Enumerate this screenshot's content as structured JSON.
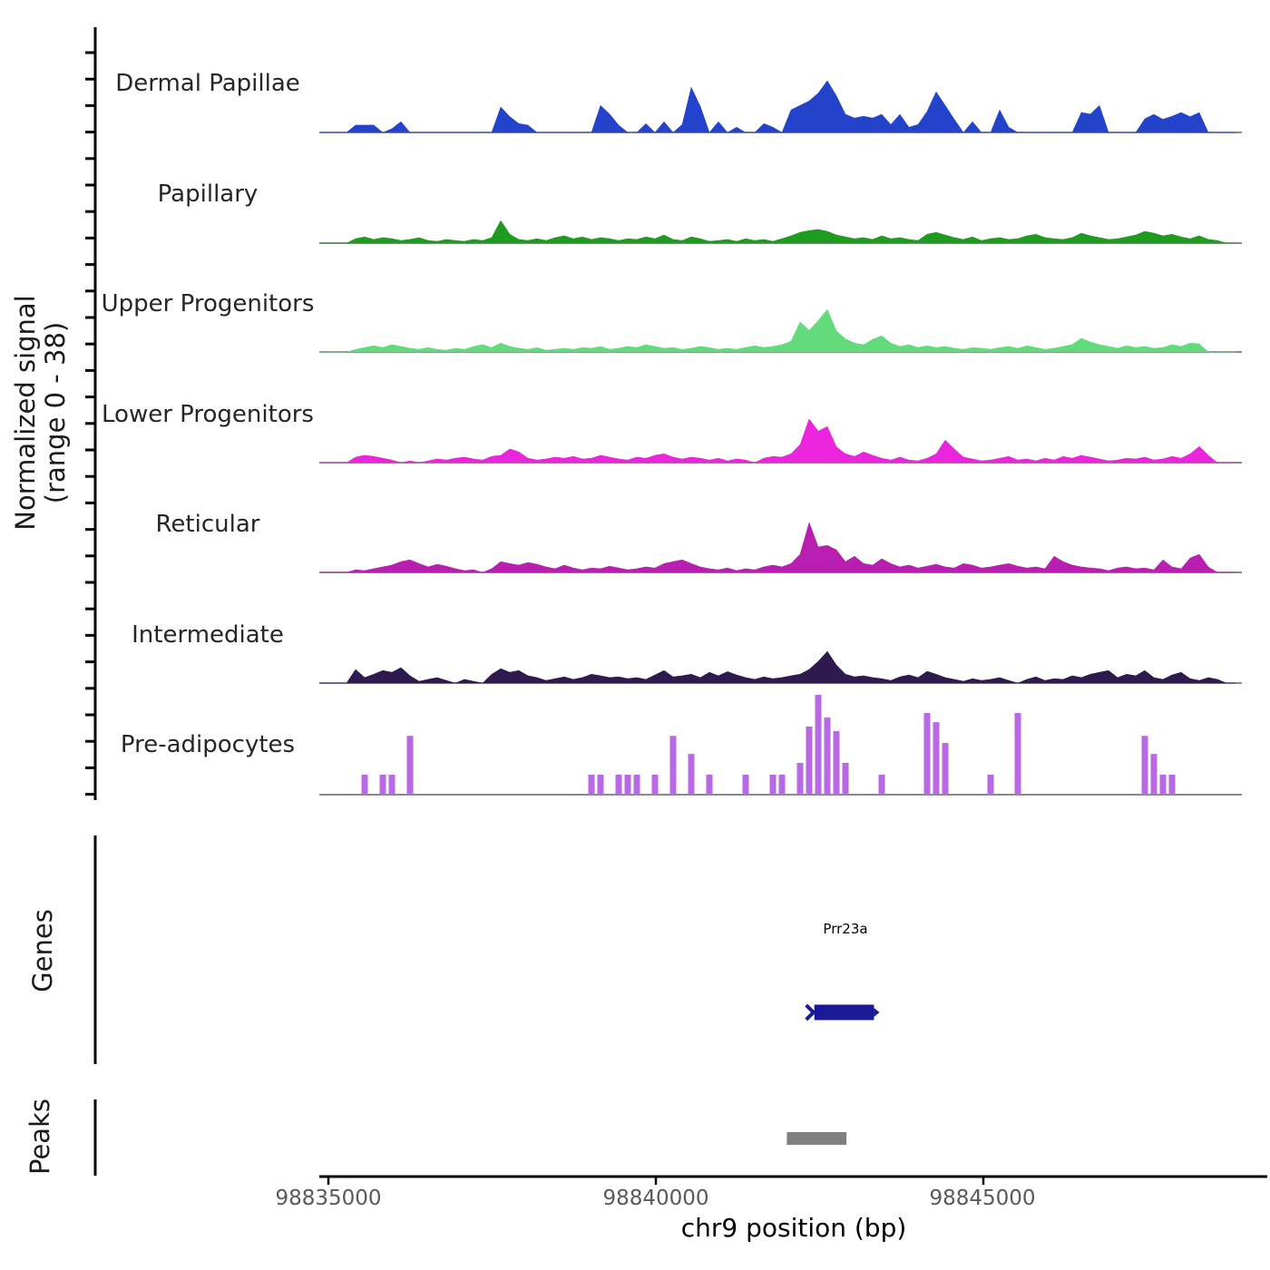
{
  "figure": {
    "y_axis_label_line1": "Normalized signal",
    "y_axis_label_line2": "(range 0 - 38)",
    "x_axis_title": "chr9 position (bp)",
    "genes_label": "Genes",
    "peaks_label": "Peaks"
  },
  "colors": {
    "dermal_papillae": "#2443cb",
    "papillary": "#1f9c1f",
    "upper_progenitors": "#63da7c",
    "lower_progenitors": "#ea25dc",
    "reticular": "#b81fb0",
    "intermediate": "#2e1a4f",
    "pre_adipocytes": "#b969e6",
    "gene_body": "#1a1a99",
    "peak_box": "#808080",
    "baseline": "#7a7a7a",
    "tick_label": "#595959"
  },
  "chart_data": {
    "type": "area",
    "title": "",
    "xlabel": "chr9 position (bp)",
    "ylabel": "Normalized signal (range 0 - 38)",
    "ylim": [
      0,
      38
    ],
    "grid": false,
    "x_start_bp": 98834860,
    "x_step_bp": 138.5,
    "x_ticks": [
      {
        "bp": 98835000,
        "label": "98835000"
      },
      {
        "bp": 98840000,
        "label": "98840000"
      },
      {
        "bp": 98845000,
        "label": "98845000"
      }
    ],
    "series": [
      {
        "name": "Dermal Papillae",
        "color": "#2443cb",
        "style": "area",
        "values": [
          0,
          0,
          0,
          0,
          2.8,
          2.8,
          2.8,
          0,
          1.4,
          4.1,
          0,
          0,
          0,
          0,
          0,
          0,
          0,
          0,
          0,
          0,
          9.7,
          6.0,
          3.4,
          2.8,
          0,
          0,
          0,
          0,
          0,
          0,
          0,
          10.3,
          7.0,
          2.8,
          0,
          0,
          3.4,
          0,
          4.1,
          0,
          3.0,
          17.2,
          10.0,
          0,
          4.1,
          0,
          2.0,
          0,
          0,
          3.4,
          2.0,
          0,
          8.6,
          10.3,
          12.0,
          15.0,
          19.7,
          14.0,
          6.9,
          5.5,
          6.2,
          5.5,
          6.9,
          3.0,
          6.9,
          2.0,
          3.0,
          8.0,
          15.5,
          10.3,
          5.0,
          0,
          4.1,
          0,
          0,
          8.6,
          2.0,
          0,
          0,
          0,
          0,
          0,
          0,
          0,
          7.6,
          7.0,
          10.3,
          0,
          0,
          0,
          0,
          5.2,
          6.9,
          5.0,
          6.2,
          7.6,
          6.0,
          7.6,
          0,
          0,
          0,
          0
        ]
      },
      {
        "name": "Papillary",
        "color": "#1f9c1f",
        "style": "area",
        "values": [
          0,
          0,
          0,
          0,
          1.7,
          2.4,
          1.4,
          2.1,
          1.7,
          1.0,
          1.4,
          2.1,
          1.0,
          0.7,
          1.4,
          1.0,
          0.7,
          1.4,
          1.0,
          2.1,
          8.6,
          3.4,
          1.4,
          1.0,
          1.7,
          1.0,
          2.1,
          2.8,
          1.7,
          2.4,
          1.4,
          2.1,
          1.7,
          1.0,
          1.7,
          1.4,
          2.4,
          1.7,
          3.1,
          1.4,
          1.0,
          2.4,
          1.7,
          0.7,
          1.0,
          1.4,
          0.7,
          1.7,
          1.0,
          1.4,
          0.7,
          1.7,
          2.8,
          4.1,
          4.8,
          5.2,
          4.5,
          3.1,
          2.4,
          1.7,
          2.1,
          1.4,
          2.8,
          1.7,
          2.1,
          1.4,
          1.0,
          3.4,
          4.1,
          3.1,
          2.1,
          1.4,
          2.4,
          1.0,
          1.7,
          2.1,
          1.4,
          1.7,
          2.8,
          3.4,
          2.1,
          1.7,
          1.4,
          2.1,
          3.8,
          2.8,
          2.1,
          1.4,
          1.7,
          2.4,
          3.1,
          4.5,
          3.8,
          2.8,
          3.4,
          2.4,
          1.7,
          2.8,
          1.4,
          1.0,
          0,
          0
        ]
      },
      {
        "name": "Upper Progenitors",
        "color": "#63da7c",
        "style": "area",
        "values": [
          0,
          0,
          0,
          0,
          1.0,
          1.7,
          2.4,
          1.7,
          2.8,
          2.1,
          1.4,
          1.0,
          1.7,
          1.0,
          0.7,
          1.4,
          1.0,
          2.1,
          2.8,
          1.7,
          3.4,
          2.1,
          1.4,
          1.0,
          1.7,
          0.7,
          1.0,
          1.4,
          1.0,
          1.7,
          1.4,
          2.1,
          1.0,
          1.4,
          2.1,
          1.7,
          2.8,
          2.1,
          1.4,
          1.7,
          1.0,
          1.4,
          2.1,
          1.7,
          1.0,
          1.4,
          1.0,
          1.7,
          2.4,
          1.7,
          2.1,
          2.8,
          4.1,
          11.4,
          8.3,
          12.0,
          16.2,
          8.0,
          5.0,
          3.4,
          2.8,
          4.8,
          6.2,
          3.4,
          2.1,
          2.8,
          1.7,
          2.4,
          1.7,
          2.1,
          1.4,
          1.0,
          1.7,
          1.4,
          1.0,
          1.7,
          2.1,
          1.4,
          2.4,
          1.7,
          1.0,
          1.4,
          2.1,
          2.8,
          5.2,
          3.8,
          2.8,
          2.1,
          1.4,
          2.4,
          1.7,
          2.1,
          1.4,
          1.7,
          2.8,
          2.1,
          3.4,
          3.1,
          0,
          0,
          0,
          0
        ]
      },
      {
        "name": "Lower Progenitors",
        "color": "#ea25dc",
        "style": "area",
        "values": [
          0,
          0,
          0,
          0,
          2.1,
          2.8,
          2.4,
          1.7,
          1.0,
          0,
          0.7,
          0,
          0.7,
          1.4,
          1.0,
          1.7,
          2.1,
          1.4,
          1.0,
          2.4,
          2.8,
          5.2,
          4.1,
          1.7,
          1.0,
          1.4,
          2.1,
          1.7,
          2.4,
          1.4,
          1.7,
          2.8,
          2.1,
          1.4,
          1.0,
          2.1,
          1.7,
          2.8,
          3.4,
          2.1,
          1.4,
          2.1,
          1.7,
          1.0,
          1.7,
          0.7,
          1.4,
          1.0,
          0,
          1.7,
          2.4,
          2.1,
          3.4,
          6.9,
          16.6,
          12.0,
          13.8,
          6.0,
          3.4,
          2.4,
          4.1,
          2.8,
          1.7,
          1.0,
          2.1,
          1.0,
          0.7,
          1.7,
          3.4,
          8.6,
          5.2,
          2.1,
          1.4,
          0.7,
          1.0,
          1.7,
          2.4,
          1.0,
          1.4,
          0.7,
          1.7,
          1.0,
          2.4,
          1.7,
          2.8,
          2.1,
          1.4,
          0.7,
          1.0,
          1.7,
          1.4,
          2.1,
          1.0,
          1.4,
          2.4,
          1.7,
          3.4,
          6.2,
          2.8,
          0,
          0,
          0
        ]
      },
      {
        "name": "Reticular",
        "color": "#b81fb0",
        "style": "area",
        "values": [
          0,
          0,
          0,
          0,
          1.0,
          0.7,
          1.4,
          2.1,
          2.8,
          4.1,
          4.8,
          3.4,
          2.1,
          3.1,
          2.4,
          1.4,
          0.7,
          1.0,
          0,
          1.4,
          4.1,
          3.4,
          2.8,
          3.8,
          3.1,
          2.1,
          1.4,
          2.8,
          1.7,
          1.0,
          1.7,
          1.4,
          2.4,
          1.7,
          1.0,
          1.4,
          2.1,
          1.7,
          3.4,
          4.1,
          4.8,
          3.4,
          2.1,
          1.4,
          1.0,
          1.7,
          0.7,
          1.4,
          1.0,
          2.1,
          2.8,
          2.1,
          3.4,
          6.9,
          19.0,
          9.7,
          10.3,
          8.6,
          4.1,
          6.2,
          3.4,
          2.8,
          5.2,
          3.4,
          2.1,
          2.8,
          1.7,
          2.4,
          3.1,
          2.1,
          1.7,
          3.4,
          2.8,
          1.7,
          2.1,
          2.8,
          3.4,
          2.4,
          1.7,
          2.1,
          1.4,
          6.2,
          4.1,
          2.8,
          2.1,
          1.7,
          1.4,
          0.7,
          1.7,
          2.1,
          1.4,
          1.7,
          1.0,
          4.8,
          2.1,
          1.4,
          5.5,
          6.9,
          2.1,
          0,
          0,
          0
        ]
      },
      {
        "name": "Intermediate",
        "color": "#2e1a4f",
        "style": "area",
        "values": [
          0,
          0,
          0,
          0,
          5.2,
          2.1,
          3.4,
          4.8,
          4.1,
          5.9,
          2.8,
          0.7,
          1.4,
          2.1,
          1.0,
          0,
          1.4,
          0.7,
          0,
          3.4,
          5.5,
          4.1,
          4.8,
          2.8,
          2.1,
          1.0,
          1.7,
          2.4,
          1.4,
          2.1,
          3.4,
          2.8,
          2.1,
          2.4,
          1.7,
          2.1,
          1.4,
          3.1,
          4.8,
          2.4,
          2.8,
          3.4,
          2.1,
          4.1,
          2.8,
          4.4,
          3.1,
          2.1,
          1.4,
          2.4,
          1.7,
          2.1,
          2.8,
          3.4,
          5.2,
          8.3,
          12.1,
          6.9,
          3.4,
          2.4,
          2.8,
          2.1,
          1.7,
          1.0,
          2.4,
          3.1,
          2.1,
          4.5,
          3.4,
          2.1,
          1.4,
          0.7,
          1.7,
          1.0,
          1.4,
          2.1,
          1.0,
          0,
          1.4,
          2.4,
          1.0,
          1.7,
          1.4,
          2.8,
          2.1,
          3.4,
          4.1,
          4.8,
          2.1,
          3.4,
          2.8,
          4.8,
          2.1,
          1.4,
          3.1,
          4.1,
          1.7,
          1.0,
          2.1,
          1.4,
          0,
          0
        ]
      },
      {
        "name": "Pre-adipocytes",
        "color": "#b969e6",
        "style": "bars",
        "values": [
          0,
          0,
          0,
          0,
          0,
          7.6,
          0,
          7.6,
          7.6,
          0,
          22.4,
          0,
          0,
          0,
          0,
          0,
          0,
          0,
          0,
          0,
          0,
          0,
          0,
          0,
          0,
          0,
          0,
          0,
          0,
          0,
          7.6,
          7.6,
          0,
          7.6,
          7.6,
          7.6,
          0,
          7.6,
          0,
          22.4,
          0,
          15.5,
          0,
          7.6,
          0,
          0,
          0,
          7.6,
          0,
          0,
          7.6,
          7.6,
          0,
          12.1,
          25.9,
          38.0,
          29.4,
          24.2,
          12.1,
          0,
          0,
          0,
          7.6,
          0,
          0,
          0,
          0,
          31.1,
          27.6,
          19.7,
          0,
          0,
          0,
          0,
          7.6,
          0,
          0,
          31.1,
          0,
          0,
          0,
          0,
          0,
          0,
          0,
          0,
          0,
          0,
          0,
          0,
          0,
          22.4,
          15.5,
          7.6,
          7.6,
          0,
          0,
          0,
          0,
          0,
          0,
          0,
          0
        ]
      }
    ],
    "gene_track": {
      "label": "Genes",
      "genes": [
        {
          "name": "Prr23a",
          "start_bp": 98842420,
          "end_bp": 98843330,
          "strand": "+",
          "color": "#1a1a99"
        }
      ]
    },
    "peak_track": {
      "label": "Peaks",
      "peaks": [
        {
          "start_bp": 98842000,
          "end_bp": 98842910,
          "color": "#808080"
        }
      ]
    }
  }
}
